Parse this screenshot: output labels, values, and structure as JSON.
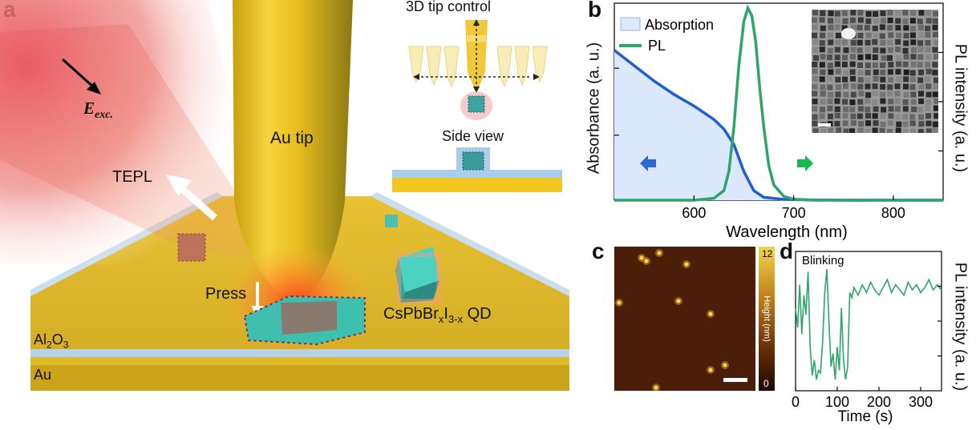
{
  "panels": {
    "a": "a",
    "b": "b",
    "c": "c",
    "d": "d"
  },
  "panel_a": {
    "tip_label": "Au tip",
    "tepl_label": "TEPL",
    "press_label": "Press",
    "qd_label_base": "CsPbBr",
    "qd_label_sub1": "x",
    "qd_label_mid": "I",
    "qd_label_sub2": "3-x",
    "qd_label_end": " QD",
    "al2o3_base": "Al",
    "al2o3_sub1": "2",
    "al2o3_mid": "O",
    "al2o3_sub2": "3",
    "au_label": "Au",
    "field_label": "E",
    "field_sub": "exc.",
    "control_title": "3D tip control",
    "side_view_title": "Side view",
    "colors": {
      "gold": "#e6c21f",
      "laser": "#e9545f",
      "substrate": "#caa31a",
      "qd_teal": "#4dd1c0"
    }
  },
  "chart_data": [
    {
      "panel": "b",
      "type": "line",
      "xlabel": "Wavelength (nm)",
      "ylabel_left": "Absorbance (a. u.)",
      "ylabel_right": "PL intensity (a. u.)",
      "xlim": [
        520,
        850
      ],
      "xticks": [
        600,
        700,
        800
      ],
      "legend": {
        "position": "top-left"
      },
      "series": [
        {
          "name": "Absorption",
          "color": "#1f5fd1",
          "fill": "#dce8fb",
          "x": [
            520,
            540,
            560,
            580,
            600,
            620,
            630,
            640,
            650,
            660,
            670,
            690,
            720,
            760,
            800,
            850
          ],
          "y": [
            0.78,
            0.7,
            0.62,
            0.55,
            0.49,
            0.42,
            0.37,
            0.29,
            0.15,
            0.05,
            0.015,
            0.004,
            0.001,
            0.0,
            0.0,
            0.0
          ]
        },
        {
          "name": "PL",
          "color": "#2ea56a",
          "x": [
            520,
            600,
            620,
            630,
            635,
            640,
            645,
            650,
            654,
            658,
            662,
            666,
            670,
            675,
            680,
            690,
            700,
            720,
            850
          ],
          "y": [
            0.0,
            0.0,
            0.01,
            0.05,
            0.15,
            0.38,
            0.7,
            0.93,
            1.0,
            0.96,
            0.82,
            0.58,
            0.38,
            0.18,
            0.08,
            0.02,
            0.005,
            0.0,
            0.0
          ]
        }
      ]
    },
    {
      "panel": "c",
      "type": "heatmap",
      "colorbar_label": "Height (nm)",
      "colorbar_max": "12",
      "colorbar_min": "0"
    },
    {
      "panel": "d",
      "type": "line",
      "annotation": "Blinking",
      "xlabel": "Time (s)",
      "ylabel_right": "PL intensity (a. u.)",
      "xlim": [
        0,
        350
      ],
      "xticks": [
        0,
        100,
        200,
        300
      ],
      "series": [
        {
          "name": "",
          "color": "#2ea56a",
          "x": [
            0,
            5,
            10,
            15,
            20,
            25,
            30,
            35,
            40,
            45,
            50,
            55,
            60,
            65,
            70,
            75,
            80,
            85,
            90,
            95,
            100,
            105,
            110,
            115,
            120,
            125,
            130,
            135,
            140,
            150,
            160,
            170,
            180,
            190,
            200,
            210,
            220,
            230,
            240,
            250,
            260,
            270,
            280,
            290,
            300,
            310,
            320,
            330,
            340,
            350
          ],
          "y": [
            0.6,
            0.45,
            0.78,
            0.4,
            0.7,
            0.55,
            0.88,
            0.3,
            0.08,
            0.2,
            0.05,
            0.12,
            0.1,
            0.35,
            0.72,
            0.9,
            0.5,
            0.15,
            0.25,
            0.05,
            0.3,
            0.12,
            0.6,
            0.2,
            0.05,
            0.15,
            0.72,
            0.68,
            0.76,
            0.7,
            0.78,
            0.72,
            0.8,
            0.74,
            0.7,
            0.76,
            0.82,
            0.72,
            0.78,
            0.74,
            0.7,
            0.8,
            0.74,
            0.78,
            0.72,
            0.76,
            0.82,
            0.74,
            0.78,
            0.74
          ]
        }
      ]
    }
  ]
}
